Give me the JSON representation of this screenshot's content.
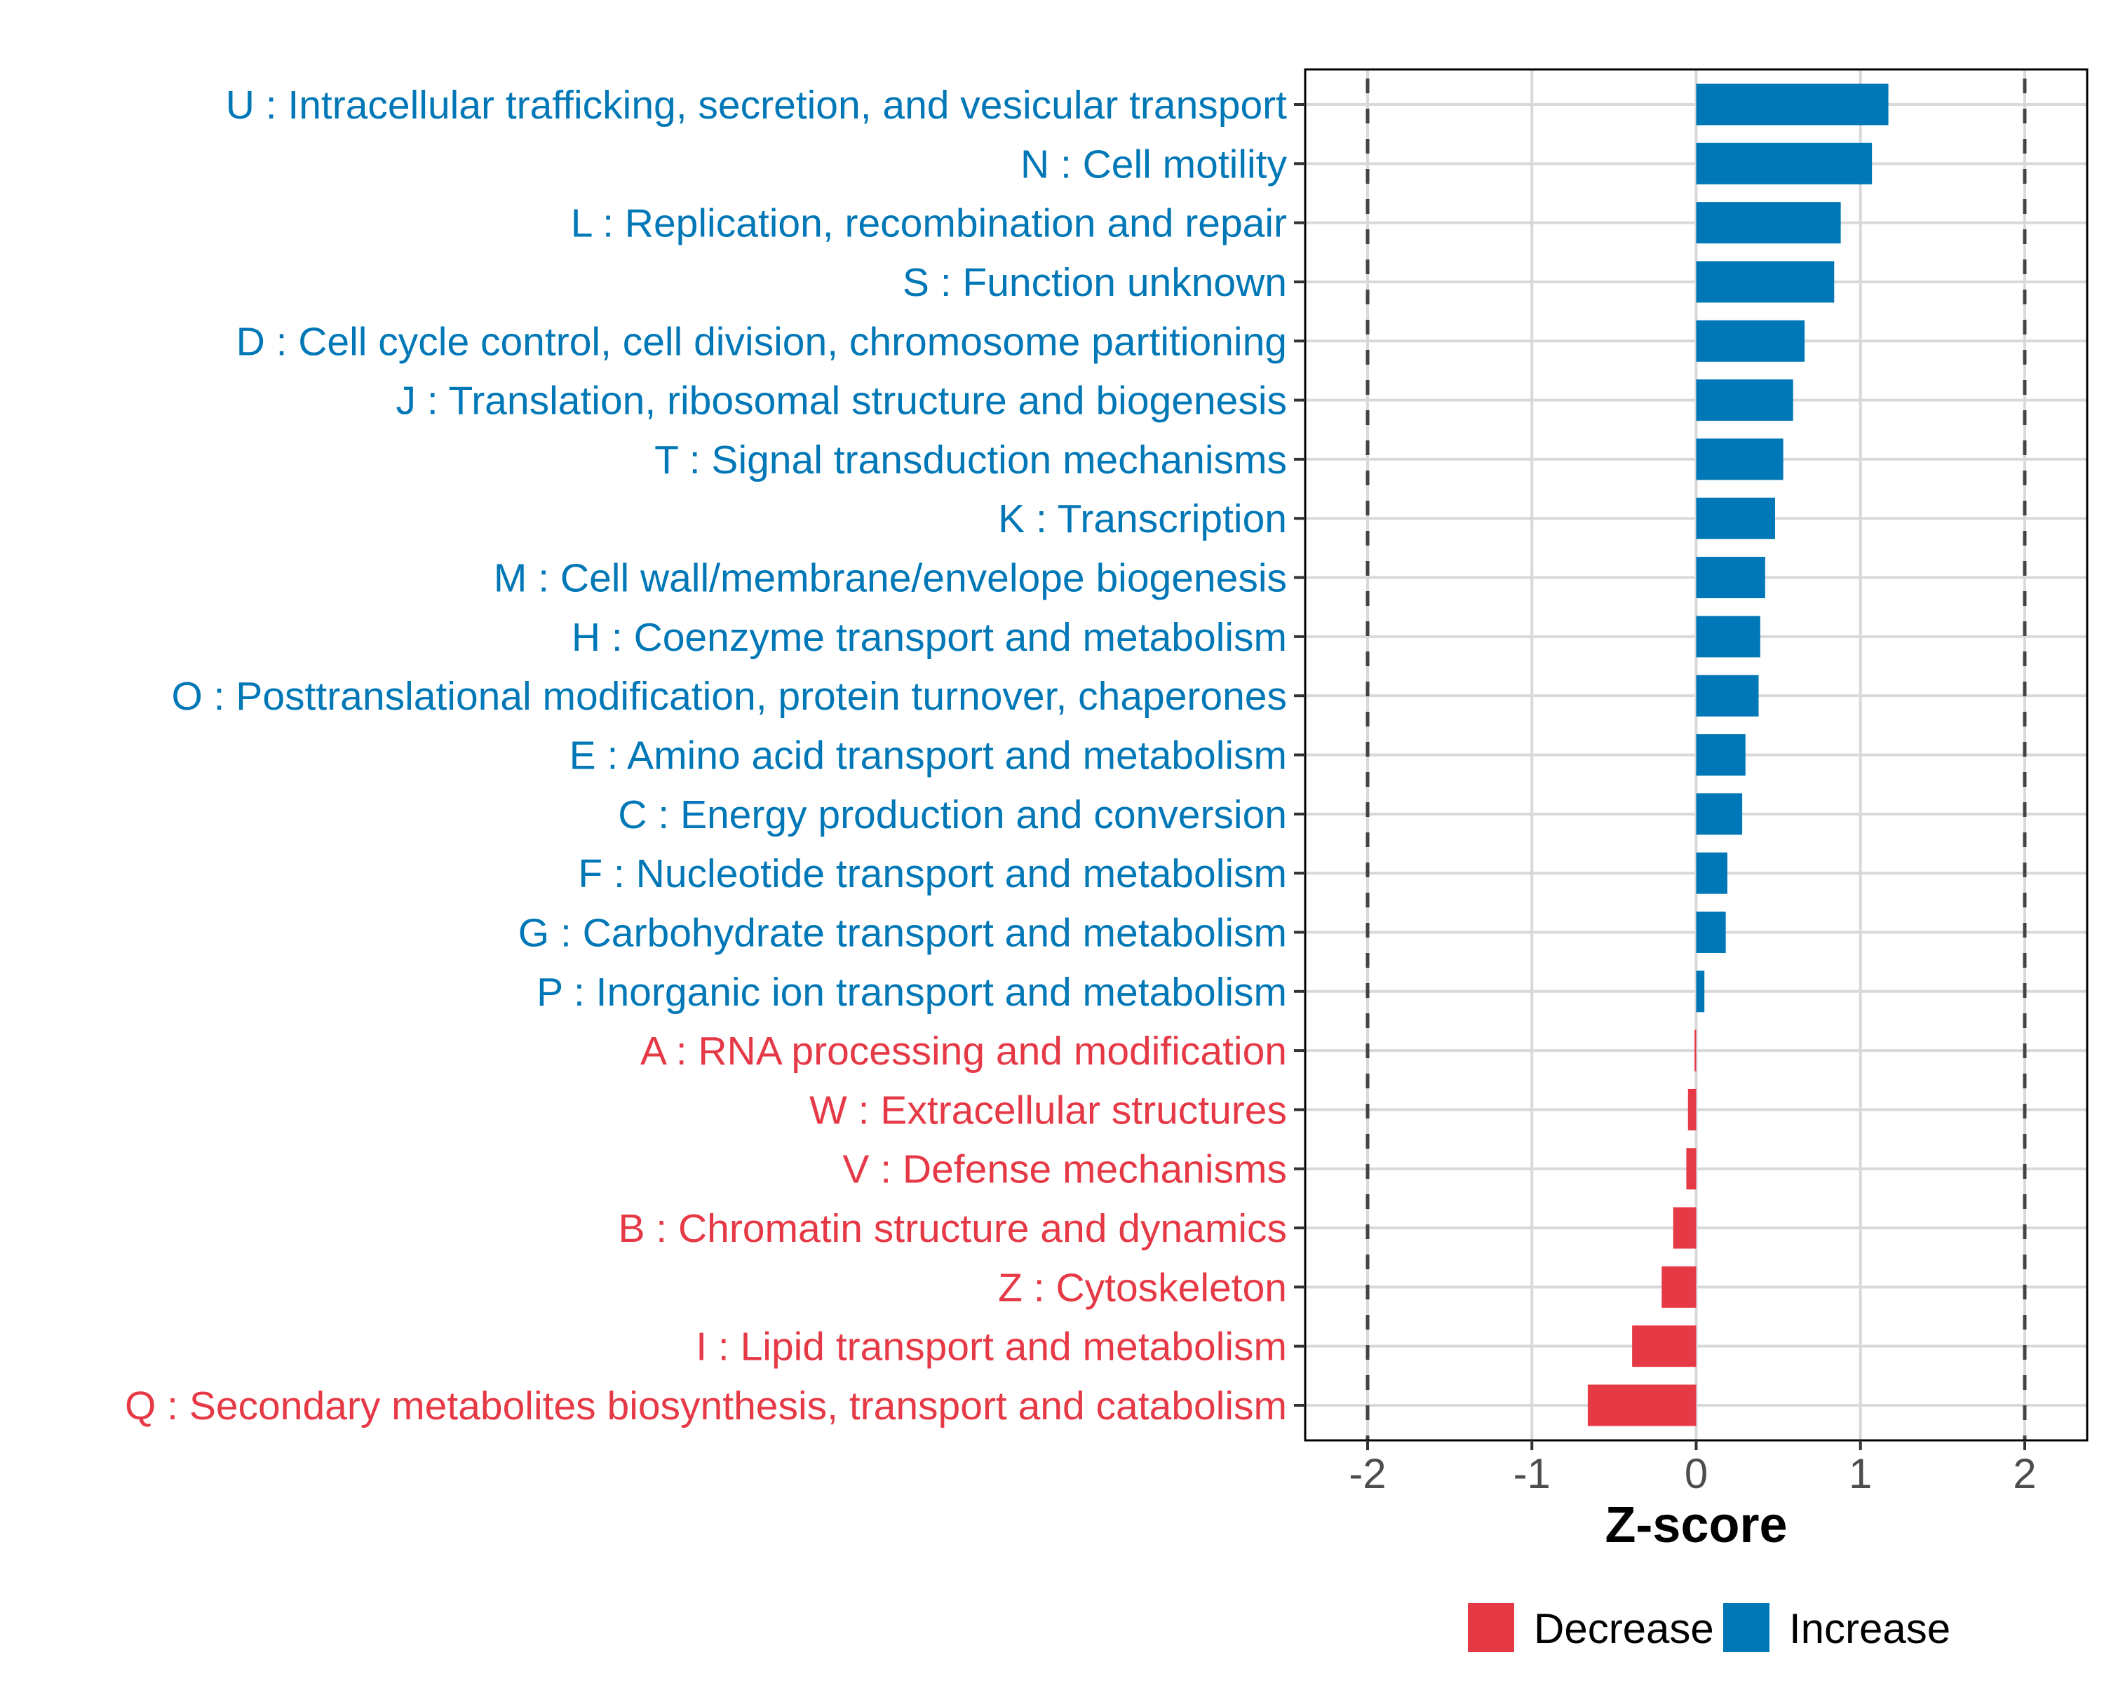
{
  "chart_data": {
    "type": "bar",
    "orientation": "horizontal",
    "title": "",
    "xlabel": "Z-score",
    "ylabel": "",
    "xlim": [
      -2.38,
      2.38
    ],
    "xticks": [
      -2,
      -1,
      0,
      1,
      2
    ],
    "xtick_labels": [
      "-2",
      "-1",
      "0",
      "1",
      "2"
    ],
    "reference_lines": [
      -2,
      2
    ],
    "grid": true,
    "legend": {
      "placement": "bottom",
      "entries": [
        {
          "label": "Decrease",
          "color": "#E63946"
        },
        {
          "label": "Increase",
          "color": "#0077B6"
        }
      ]
    },
    "categories": [
      "U : Intracellular trafficking, secretion, and vesicular transport",
      "N : Cell motility",
      "L : Replication, recombination and repair",
      "S : Function unknown",
      "D : Cell cycle control, cell division, chromosome partitioning",
      "J : Translation, ribosomal structure and biogenesis",
      "T : Signal transduction mechanisms",
      "K : Transcription",
      "M : Cell wall/membrane/envelope biogenesis",
      "H : Coenzyme transport and metabolism",
      "O : Posttranslational modification, protein turnover, chaperones",
      "E : Amino acid transport and metabolism",
      "C : Energy production and conversion",
      "F : Nucleotide transport and metabolism",
      "G : Carbohydrate transport and metabolism",
      "P : Inorganic ion transport and metabolism",
      "A : RNA processing and modification",
      "W : Extracellular structures",
      "V : Defense mechanisms",
      "B : Chromatin structure and dynamics",
      "Z : Cytoskeleton",
      "I : Lipid transport and metabolism",
      "Q : Secondary metabolites biosynthesis, transport and catabolism"
    ],
    "values": [
      1.17,
      1.07,
      0.88,
      0.84,
      0.66,
      0.59,
      0.53,
      0.48,
      0.42,
      0.39,
      0.38,
      0.3,
      0.28,
      0.19,
      0.18,
      0.05,
      -0.01,
      -0.05,
      -0.06,
      -0.14,
      -0.21,
      -0.39,
      -0.66
    ],
    "direction": [
      "Increase",
      "Increase",
      "Increase",
      "Increase",
      "Increase",
      "Increase",
      "Increase",
      "Increase",
      "Increase",
      "Increase",
      "Increase",
      "Increase",
      "Increase",
      "Increase",
      "Increase",
      "Increase",
      "Decrease",
      "Decrease",
      "Decrease",
      "Decrease",
      "Decrease",
      "Decrease",
      "Decrease"
    ],
    "colors": {
      "Increase": "#0077B6",
      "Decrease": "#E63946"
    }
  }
}
